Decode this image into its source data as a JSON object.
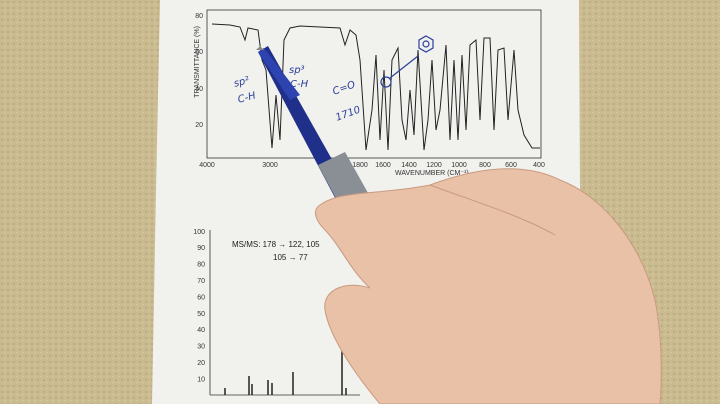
{
  "ir_spectrum": {
    "y_axis_label": "TRANSMITTANCE (%)",
    "y_ticks": [
      "80",
      "60",
      "40",
      "20"
    ],
    "x_ticks": [
      "4000",
      "3000",
      "1800",
      "1600",
      "1400",
      "1200",
      "1000",
      "800",
      "600",
      "400"
    ],
    "x_axis_label": "WAVENUMBER (CM⁻¹)"
  },
  "annotations": {
    "sp2": "sp²",
    "sp2_ch": "C-H",
    "sp3": "sp³",
    "sp3_ch": "C-H",
    "carbonyl": "C=O",
    "wavenumber": "1710"
  },
  "mass_spectrum": {
    "y_ticks": [
      "100",
      "90",
      "80",
      "70",
      "60",
      "50",
      "40",
      "30",
      "20",
      "10"
    ],
    "note_lines": [
      "MS/MS:  178 → 122, 105",
      "105 → 77"
    ]
  }
}
